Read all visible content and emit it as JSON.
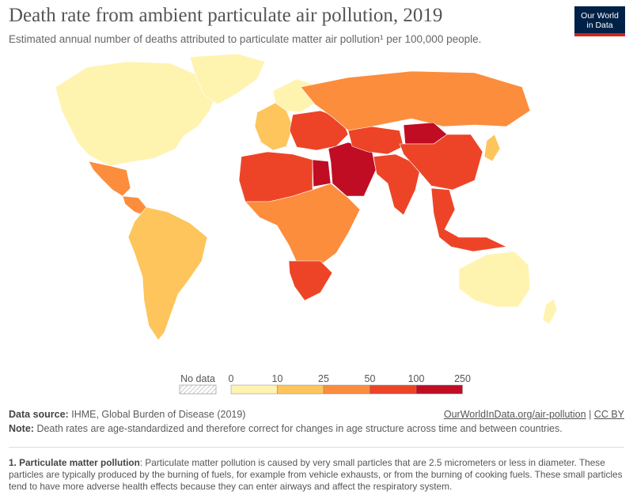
{
  "header": {
    "title": "Death rate from ambient particulate air pollution, 2019",
    "subtitle": "Estimated annual number of deaths attributed to particulate matter air pollution¹ per 100,000 people.",
    "logo_line1": "Our World",
    "logo_line2": "in Data"
  },
  "legend": {
    "no_data_label": "No data",
    "ticks": [
      "0",
      "10",
      "25",
      "50",
      "100",
      "250"
    ],
    "bins": [
      {
        "range": "0-10",
        "color": "#fff3b0"
      },
      {
        "range": "10-25",
        "color": "#fdc55c"
      },
      {
        "range": "25-50",
        "color": "#fb8d3d"
      },
      {
        "range": "50-100",
        "color": "#ed4427"
      },
      {
        "range": "100-250",
        "color": "#c00d24"
      }
    ]
  },
  "regions": [
    {
      "name": "North America",
      "bin": "0-10"
    },
    {
      "name": "Greenland",
      "bin": "0-10"
    },
    {
      "name": "Mexico",
      "bin": "25-50"
    },
    {
      "name": "Central America",
      "bin": "25-50"
    },
    {
      "name": "South America",
      "bin": "10-25"
    },
    {
      "name": "Western Europe",
      "bin": "10-25"
    },
    {
      "name": "Northern Europe",
      "bin": "0-10"
    },
    {
      "name": "Eastern Europe",
      "bin": "50-100"
    },
    {
      "name": "Russia",
      "bin": "25-50"
    },
    {
      "name": "North Africa",
      "bin": "50-100"
    },
    {
      "name": "Egypt",
      "bin": "100-250"
    },
    {
      "name": "Sub-Saharan Africa",
      "bin": "25-50"
    },
    {
      "name": "Southern Africa",
      "bin": "50-100"
    },
    {
      "name": "Middle East",
      "bin": "100-250"
    },
    {
      "name": "Central Asia",
      "bin": "50-100"
    },
    {
      "name": "Mongolia",
      "bin": "100-250"
    },
    {
      "name": "South Asia",
      "bin": "50-100"
    },
    {
      "name": "China",
      "bin": "50-100"
    },
    {
      "name": "Southeast Asia",
      "bin": "50-100"
    },
    {
      "name": "Japan",
      "bin": "10-25"
    },
    {
      "name": "Australia",
      "bin": "0-10"
    },
    {
      "name": "New Zealand",
      "bin": "0-10"
    }
  ],
  "footer": {
    "source_label": "Data source:",
    "source_text": "IHME, Global Burden of Disease (2019)",
    "url_text": "OurWorldInData.org/air-pollution",
    "license_sep": "|",
    "license_text": "CC BY",
    "note_label": "Note:",
    "note_text": "Death rates are age-standardized and therefore correct for changes in age structure across time and between countries."
  },
  "footnote": {
    "label": "1. Particulate matter pollution",
    "text": ": Particulate matter pollution is caused by very small particles that are 2.5 micrometers or less in diameter. These particles are typically produced by the burning of fuels, for example from vehicle exhausts, or from the burning of cooking fuels. These small particles tend to have more adverse health effects because they can enter airways and affect the respiratory system."
  }
}
